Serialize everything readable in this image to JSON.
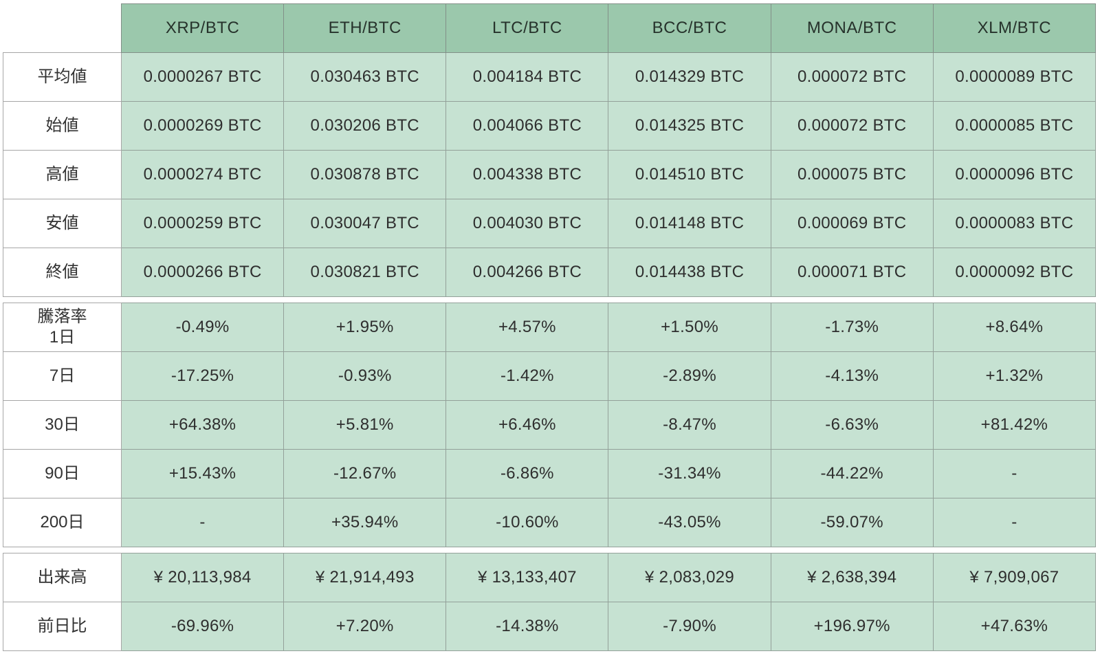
{
  "chart_data": {
    "type": "table",
    "columns": [
      "XRP/BTC",
      "ETH/BTC",
      "LTC/BTC",
      "BCC/BTC",
      "MONA/BTC",
      "XLM/BTC"
    ],
    "sections": [
      {
        "name": "prices",
        "rows": [
          {
            "label": "平均値",
            "values": [
              "0.0000267 BTC",
              "0.030463 BTC",
              "0.004184 BTC",
              "0.014329 BTC",
              "0.000072 BTC",
              "0.0000089 BTC"
            ]
          },
          {
            "label": "始値",
            "values": [
              "0.0000269 BTC",
              "0.030206 BTC",
              "0.004066 BTC",
              "0.014325 BTC",
              "0.000072 BTC",
              "0.0000085 BTC"
            ]
          },
          {
            "label": "高値",
            "values": [
              "0.0000274 BTC",
              "0.030878 BTC",
              "0.004338 BTC",
              "0.014510 BTC",
              "0.000075 BTC",
              "0.0000096 BTC"
            ]
          },
          {
            "label": "安値",
            "values": [
              "0.0000259 BTC",
              "0.030047 BTC",
              "0.004030 BTC",
              "0.014148 BTC",
              "0.000069 BTC",
              "0.0000083 BTC"
            ]
          },
          {
            "label": "終値",
            "values": [
              "0.0000266 BTC",
              "0.030821 BTC",
              "0.004266 BTC",
              "0.014438 BTC",
              "0.000071 BTC",
              "0.0000092 BTC"
            ]
          }
        ]
      },
      {
        "name": "change_rates",
        "rows": [
          {
            "label": "騰落率\n1日",
            "values": [
              "-0.49%",
              "+1.95%",
              "+4.57%",
              "+1.50%",
              "-1.73%",
              "+8.64%"
            ]
          },
          {
            "label": "7日",
            "values": [
              "-17.25%",
              "-0.93%",
              "-1.42%",
              "-2.89%",
              "-4.13%",
              "+1.32%"
            ]
          },
          {
            "label": "30日",
            "values": [
              "+64.38%",
              "+5.81%",
              "+6.46%",
              "-8.47%",
              "-6.63%",
              "+81.42%"
            ]
          },
          {
            "label": "90日",
            "values": [
              "+15.43%",
              "-12.67%",
              "-6.86%",
              "-31.34%",
              "-44.22%",
              "-"
            ]
          },
          {
            "label": "200日",
            "values": [
              "-",
              "+35.94%",
              "-10.60%",
              "-43.05%",
              "-59.07%",
              "-"
            ]
          }
        ]
      },
      {
        "name": "volume",
        "rows": [
          {
            "label": "出来高",
            "values": [
              "¥ 20,113,984",
              "¥ 21,914,493",
              "¥ 13,133,407",
              "¥ 2,083,029",
              "¥ 2,638,394",
              "¥ 7,909,067"
            ]
          },
          {
            "label": "前日比",
            "values": [
              "-69.96%",
              "+7.20%",
              "-14.38%",
              "-7.90%",
              "+196.97%",
              "+47.63%"
            ]
          }
        ]
      }
    ],
    "layout": {
      "header_bg": "#9bc8ac",
      "cell_bg": "#c6e2d2",
      "label_bg": "#ffffff",
      "text_color": "#2e2e2e"
    }
  }
}
